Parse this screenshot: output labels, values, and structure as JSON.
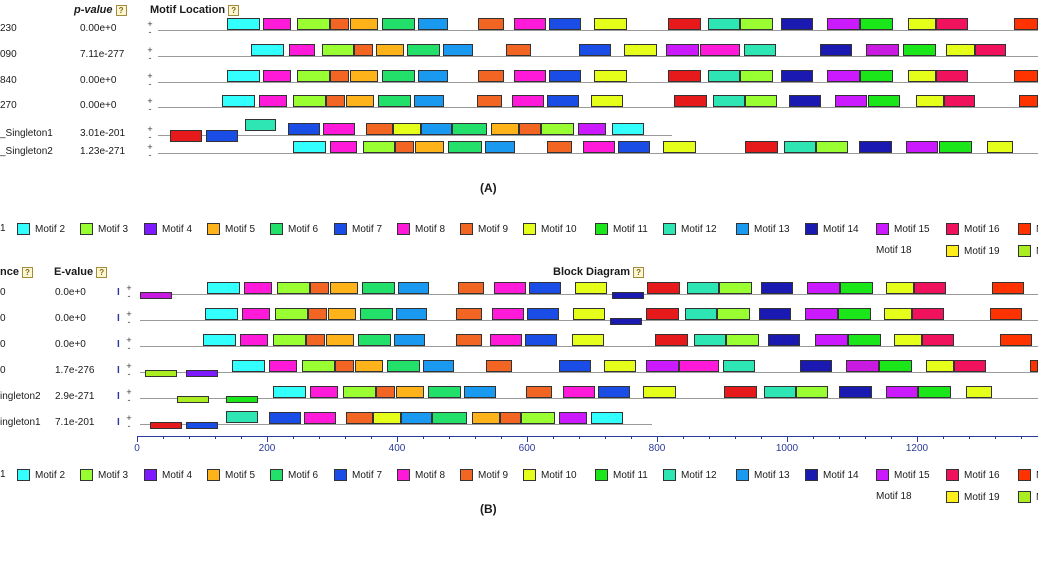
{
  "colors": {
    "m1": "#ff3300",
    "m2": "#33ffff",
    "m3": "#99ff33",
    "m4": "#7d1aff",
    "m5": "#ffb31a",
    "m6": "#22e06a",
    "m7": "#1a4de6",
    "m8": "#ff1ad9",
    "m9": "#f26522",
    "m10": "#e6ff1a",
    "m11": "#1ae61a",
    "m12": "#2ee6b3",
    "m13": "#1a99f0",
    "m14": "#1a1ab3",
    "m15": "#cc1aff",
    "m16": "#f0125c",
    "m17": "#e61a1a",
    "m18": "#f08021",
    "m19": "#ffee1a",
    "m20": "#aaee22",
    "m21": "#c81ae0",
    "m22": "#1ab380"
  },
  "panelA": {
    "col_seq": "",
    "col_pvalue": "p-value",
    "col_location": "Motif Location",
    "help": "?",
    "caption": "(A)",
    "rows": [
      {
        "name": "230",
        "pvalue": "0.00e+0"
      },
      {
        "name": "090",
        "pvalue": "7.11e-277"
      },
      {
        "name": "840",
        "pvalue": "0.00e+0"
      },
      {
        "name": "270",
        "pvalue": "0.00e+0"
      },
      {
        "name": "_Singleton1",
        "pvalue": "3.01e-201"
      },
      {
        "name": "_Singleton2",
        "pvalue": "1.23e-271"
      }
    ],
    "legend_row1": [
      "1",
      "Motif 2",
      "Motif 3",
      "Motif 4",
      "Motif 5",
      "Motif 6",
      "Motif 7",
      "Motif 8",
      "Motif 9",
      "Motif 10",
      "Motif 11",
      "Motif 12",
      "Motif 13",
      "Motif 14",
      "Motif 15",
      "Motif 16",
      "M"
    ],
    "legend_row2": [
      "Motif 18",
      "Motif 19",
      "M"
    ]
  },
  "panelB": {
    "col_seq": "nce",
    "col_evalue": "E-value",
    "col_diagram": "Block Diagram",
    "help": "?",
    "caption": "(B)",
    "rows": [
      {
        "name": "0",
        "evalue": "0.0e+0"
      },
      {
        "name": "0",
        "evalue": "0.0e+0"
      },
      {
        "name": "0",
        "evalue": "0.0e+0"
      },
      {
        "name": "0",
        "evalue": "1.7e-276"
      },
      {
        "name": "ingleton2",
        "evalue": "2.9e-271"
      },
      {
        "name": "ingleton1",
        "evalue": "7.1e-201"
      }
    ],
    "axis_ticks": [
      "0",
      "200",
      "400",
      "600",
      "800",
      "1000",
      "1200",
      "1"
    ],
    "legend_row1": [
      "1",
      "Motif 2",
      "Motif 3",
      "Motif 4",
      "Motif 5",
      "Motif 6",
      "Motif 7",
      "Motif 8",
      "Motif 9",
      "Motif 10",
      "Motif 11",
      "Motif 12",
      "Motif 13",
      "Motif 14",
      "Motif 15",
      "Motif 16",
      "M"
    ],
    "legend_row2": [
      "Motif 18",
      "Motif 19",
      "M"
    ]
  },
  "strand": {
    "plus": "+",
    "minus": "-",
    "ibar": "I"
  }
}
